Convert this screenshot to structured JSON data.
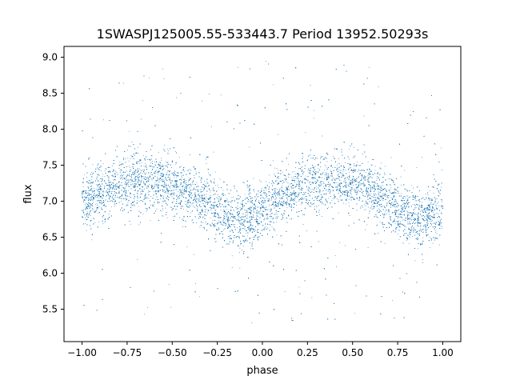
{
  "chart_data": {
    "type": "scatter",
    "title": "1SWASPJ125005.55-533443.7 Period 13952.50293s",
    "xlabel": "phase",
    "ylabel": "flux",
    "xlim": [
      -1.1,
      1.1
    ],
    "ylim": [
      5.05,
      9.15
    ],
    "x_ticks": [
      -1.0,
      -0.75,
      -0.5,
      -0.25,
      0.0,
      0.25,
      0.5,
      0.75,
      1.0
    ],
    "x_tick_labels": [
      "−1.00",
      "−0.75",
      "−0.50",
      "−0.25",
      "0.00",
      "0.25",
      "0.50",
      "0.75",
      "1.00"
    ],
    "y_ticks": [
      5.5,
      6.0,
      6.5,
      7.0,
      7.5,
      8.0,
      8.5,
      9.0
    ],
    "y_tick_labels": [
      "5.5",
      "6.0",
      "6.5",
      "7.0",
      "7.5",
      "8.0",
      "8.5",
      "9.0"
    ],
    "grid": false,
    "legend": "none",
    "point_color": "#1f77b4",
    "series": [
      {
        "phase_range": [
          -1.0,
          1.0
        ],
        "approx_points": 20000,
        "folded_curve": {
          "x": [
            -1.0,
            -0.9,
            -0.8,
            -0.7,
            -0.6,
            -0.5,
            -0.4,
            -0.3,
            -0.2,
            -0.15,
            -0.1,
            0.0,
            0.1,
            0.2,
            0.3,
            0.4,
            0.5,
            0.6,
            0.7,
            0.8,
            0.85,
            0.9,
            1.0
          ],
          "y": [
            6.95,
            7.12,
            7.24,
            7.28,
            7.26,
            7.2,
            7.1,
            6.95,
            6.78,
            6.74,
            6.76,
            6.88,
            7.05,
            7.18,
            7.26,
            7.28,
            7.24,
            7.15,
            6.98,
            6.8,
            6.74,
            6.76,
            6.88
          ]
        },
        "core_scatter_sd": 0.2,
        "outlier_fraction": 0.05,
        "outlier_range": [
          5.3,
          8.95
        ]
      }
    ]
  }
}
